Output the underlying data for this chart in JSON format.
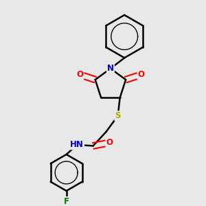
{
  "background_color": "#e8e8e8",
  "atom_colors": {
    "C": "#000000",
    "N": "#0000cc",
    "O": "#ff0000",
    "S": "#aaaa00",
    "F": "#007700",
    "H": "#555555"
  },
  "bond_color": "#000000",
  "bond_width": 1.8,
  "figsize": [
    3.0,
    3.0
  ],
  "dpi": 100,
  "xlim": [
    0.05,
    0.95
  ],
  "ylim": [
    0.03,
    0.97
  ]
}
